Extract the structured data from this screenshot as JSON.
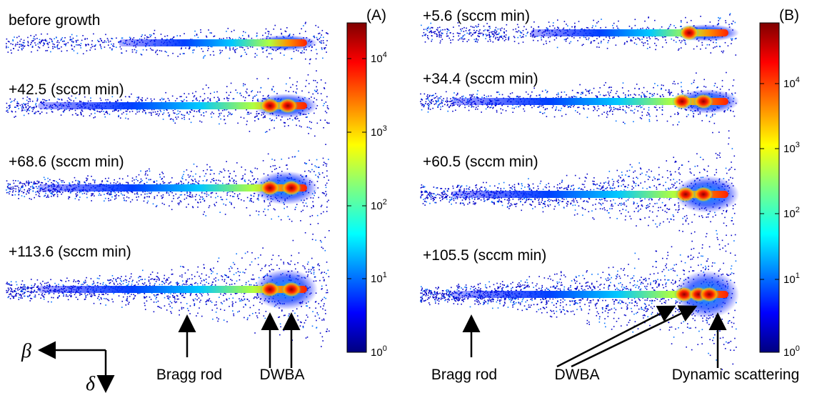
{
  "panels": [
    {
      "label": "(A)",
      "images": [
        "before growth",
        "+42.5 (sccm min)",
        "+68.6 (sccm min)",
        "+113.6 (sccm min)"
      ],
      "colorbar_ticks": [
        {
          "base": "10",
          "exponent": "0"
        },
        {
          "base": "10",
          "exponent": "1"
        },
        {
          "base": "10",
          "exponent": "2"
        },
        {
          "base": "10",
          "exponent": "3"
        },
        {
          "base": "10",
          "exponent": "4"
        }
      ],
      "annotations": [
        "Bragg rod",
        "DWBA"
      ]
    },
    {
      "label": "(B)",
      "images": [
        "+5.6 (sccm min)",
        "+34.4 (sccm min)",
        "+60.5 (sccm min)",
        "+105.5 (sccm min)"
      ],
      "colorbar_ticks": [
        {
          "base": "10",
          "exponent": "0"
        },
        {
          "base": "10",
          "exponent": "1"
        },
        {
          "base": "10",
          "exponent": "2"
        },
        {
          "base": "10",
          "exponent": "3"
        },
        {
          "base": "10",
          "exponent": "4"
        }
      ],
      "annotations": [
        "Bragg rod",
        "DWBA",
        "Dynamic scattering"
      ]
    }
  ],
  "axes": {
    "horizontal": "β",
    "vertical": "δ"
  }
}
